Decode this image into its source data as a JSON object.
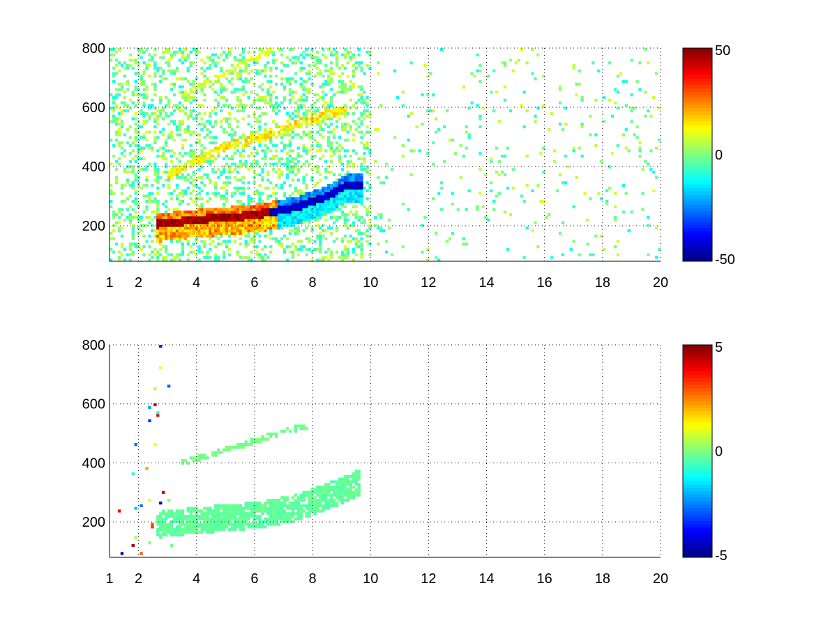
{
  "chart_data": [
    {
      "type": "heatmap",
      "title": "",
      "xlabel": "",
      "ylabel": "",
      "xlim": [
        1,
        20
      ],
      "ylim": [
        80,
        800
      ],
      "xticks": [
        1,
        2,
        4,
        6,
        8,
        10,
        12,
        14,
        16,
        18,
        20
      ],
      "yticks": [
        200,
        400,
        600,
        800
      ],
      "grid": true,
      "colormap": "jet",
      "colorbar": {
        "min": -50,
        "max": 50,
        "ticks": [
          -50,
          0,
          50
        ]
      },
      "features": [
        {
          "name": "lower-ridge",
          "x": [
            2.6,
            3.5,
            4.5,
            5.5,
            6.5,
            7.5,
            8.5,
            9.2
          ],
          "y": [
            205,
            215,
            225,
            232,
            245,
            265,
            300,
            340
          ],
          "sign": "positive-then-negative"
        },
        {
          "name": "middle-ridge",
          "x": [
            3,
            4,
            5,
            6,
            7,
            8,
            9
          ],
          "y": [
            370,
            420,
            465,
            495,
            525,
            560,
            590
          ]
        },
        {
          "name": "upper-ridge",
          "x": [
            3.5,
            4.5,
            5.5,
            6.5
          ],
          "y": [
            640,
            690,
            740,
            790
          ]
        }
      ]
    },
    {
      "type": "heatmap",
      "title": "",
      "xlabel": "",
      "ylabel": "",
      "xlim": [
        1,
        20
      ],
      "ylim": [
        80,
        800
      ],
      "xticks": [
        1,
        2,
        4,
        6,
        8,
        10,
        12,
        14,
        16,
        18,
        20
      ],
      "yticks": [
        200,
        400,
        600,
        800
      ],
      "grid": true,
      "colormap": "jet",
      "colorbar": {
        "min": -5,
        "max": 5,
        "ticks": [
          -5,
          0,
          5
        ]
      },
      "features": [
        {
          "name": "lower-band",
          "x": [
            2.6,
            3.5,
            4.5,
            5.5,
            6.5,
            7.5,
            8.5,
            9.5
          ],
          "y": [
            205,
            215,
            225,
            232,
            245,
            265,
            300,
            345
          ]
        },
        {
          "name": "middle-band",
          "x": [
            3.5,
            4.5,
            5.5,
            6.5,
            7.5
          ],
          "y": [
            400,
            430,
            460,
            490,
            520
          ]
        }
      ]
    }
  ]
}
